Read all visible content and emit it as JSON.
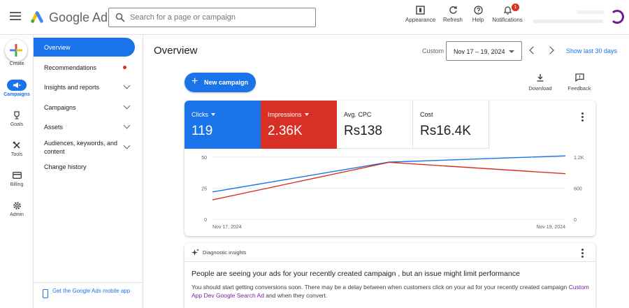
{
  "app": {
    "name": "Google Ads"
  },
  "search": {
    "placeholder": "Search for a page or campaign"
  },
  "toolbar": {
    "appearance": "Appearance",
    "refresh": "Refresh",
    "help": "Help",
    "notifications": "Notifications",
    "notifications_count": "1"
  },
  "rail": {
    "create": "Create",
    "campaigns": "Campaigns",
    "goals": "Goals",
    "tools": "Tools",
    "billing": "Billing",
    "admin": "Admin"
  },
  "nav": {
    "items": [
      {
        "label": "Overview"
      },
      {
        "label": "Recommendations"
      },
      {
        "label": "Insights and reports"
      },
      {
        "label": "Campaigns"
      },
      {
        "label": "Assets"
      },
      {
        "label": "Audiences, keywords, and content"
      },
      {
        "label": "Change history"
      }
    ],
    "footer_link": "Get the Google Ads mobile app"
  },
  "main": {
    "title": "Overview",
    "range_label": "Custom",
    "date_range": "Nov 17 – 19, 2024",
    "show_last": "Show last 30 days",
    "new_campaign": "New campaign",
    "download": "Download",
    "feedback": "Feedback"
  },
  "metrics": [
    {
      "label": "Clicks",
      "value": "119",
      "bg": "#1a73e8",
      "fg": "#ffffff"
    },
    {
      "label": "Impressions",
      "value": "2.36K",
      "bg": "#d93025",
      "fg": "#ffffff"
    },
    {
      "label": "Avg. CPC",
      "value": "Rs138",
      "bg": "#ffffff",
      "fg": "#202124"
    },
    {
      "label": "Cost",
      "value": "Rs16.4K",
      "bg": "#ffffff",
      "fg": "#202124"
    }
  ],
  "chart_data": {
    "type": "line",
    "x": [
      "Nov 17, 2024",
      "Nov 18, 2024",
      "Nov 19, 2024"
    ],
    "x_tick_labels": [
      "Nov 17, 2024",
      "Nov 19, 2024"
    ],
    "y_left": {
      "ticks": [
        "0",
        "25",
        "50"
      ],
      "ylim": [
        0,
        50
      ]
    },
    "y_right": {
      "ticks": [
        "0",
        "600",
        "1.2K"
      ],
      "ylim": [
        0,
        1200
      ]
    },
    "series": [
      {
        "name": "Clicks",
        "color": "#1a73e8",
        "axis": "left",
        "values": [
          22,
          46,
          51
        ]
      },
      {
        "name": "Impressions",
        "color": "#d93025",
        "axis": "right",
        "values": [
          375,
          1100,
          880
        ]
      }
    ],
    "grid": true
  },
  "insights": {
    "title": "Diagnostic insights",
    "headline": "People are seeing your ads for your recently created campaign , but an issue might limit performance",
    "body": "You should start getting conversions soon. There may be a delay between when customers click on your ad for your recently created campaign",
    "link": "Custom App Dev Google Search Ad",
    "body_end": "and when they convert."
  }
}
